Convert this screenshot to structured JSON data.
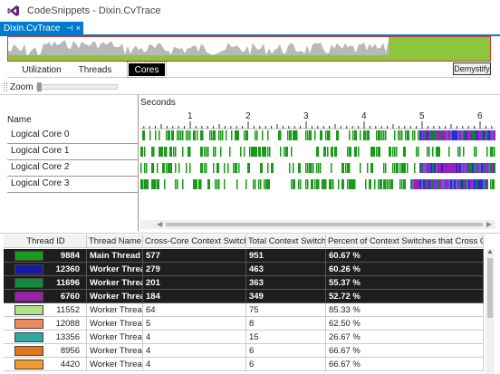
{
  "window": {
    "title": "CodeSnippets - Dixin.CvTrace"
  },
  "document_tab": {
    "label": "Dixin.CvTrace",
    "pin_glyph": "⊣",
    "close_glyph": "×"
  },
  "view_tabs": {
    "utilization": "Utilization",
    "threads": "Threads",
    "cores": "Cores",
    "selected": "Cores"
  },
  "demystify_label": "Demystify",
  "zoom_label": "Zoom",
  "timeline": {
    "seconds_label": "Seconds",
    "ticks": [
      "1",
      "2",
      "3",
      "4",
      "5",
      "6"
    ],
    "name_header": "Name",
    "cores": [
      "Logical Core 0",
      "Logical Core 1",
      "Logical Core 2",
      "Logical Core 3"
    ]
  },
  "grid": {
    "headers": {
      "thread_id": "Thread ID",
      "thread_name": "Thread Name",
      "cross_core": "Cross-Core Context Switches",
      "total": "Total Context Switches",
      "percent": "Percent of Context Switches that Cross Cores"
    },
    "rows": [
      {
        "id": "9884",
        "name": "Main Thread",
        "cross": "577",
        "total": "951",
        "pct": "60.67 %",
        "color": "#1a9a1a",
        "selected": true
      },
      {
        "id": "12360",
        "name": "Worker Threa",
        "cross": "279",
        "total": "463",
        "pct": "60.26 %",
        "color": "#1818a8",
        "selected": true
      },
      {
        "id": "11696",
        "name": "Worker Threa",
        "cross": "201",
        "total": "363",
        "pct": "55.37 %",
        "color": "#11893e",
        "selected": true
      },
      {
        "id": "6760",
        "name": "Worker Threa",
        "cross": "184",
        "total": "349",
        "pct": "52.72 %",
        "color": "#9b1fb0",
        "selected": true
      },
      {
        "id": "11552",
        "name": "Worker Thread",
        "cross": "64",
        "total": "75",
        "pct": "85.33 %",
        "color": "#b5e08a",
        "selected": false
      },
      {
        "id": "12088",
        "name": "Worker Thread",
        "cross": "5",
        "total": "8",
        "pct": "62.50 %",
        "color": "#f08a5c",
        "selected": false
      },
      {
        "id": "13356",
        "name": "Worker Thread",
        "cross": "4",
        "total": "15",
        "pct": "26.67 %",
        "color": "#2fa6a0",
        "selected": false
      },
      {
        "id": "8956",
        "name": "Worker Thread",
        "cross": "4",
        "total": "6",
        "pct": "66.67 %",
        "color": "#e0761c",
        "selected": false
      },
      {
        "id": "4420",
        "name": "Worker Thread",
        "cross": "4",
        "total": "6",
        "pct": "66.67 %",
        "color": "#f09a2c",
        "selected": false
      }
    ]
  },
  "colors": {
    "accent": "#007acc",
    "cpu_green": "#8cc63f",
    "core_green": "#1a9a1a",
    "core_purple": "#8a2be2",
    "selection_bg": "#1e1e1e"
  }
}
